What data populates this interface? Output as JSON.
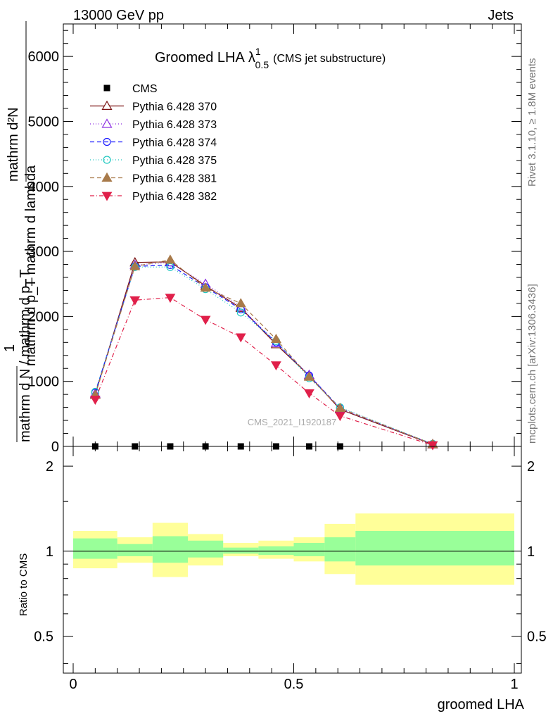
{
  "header": {
    "left": "13000 GeV pp",
    "right": "Jets"
  },
  "side_labels": {
    "rivet": "Rivet 3.1.10, ≥ 1.8M events",
    "mcplots": "mcplots.cern.ch [arXiv:1306.3436]"
  },
  "watermark": "CMS_2021_I1920187",
  "chart_data": [
    {
      "type": "line",
      "title": "Groomed LHA",
      "title_symbol": "λ",
      "title_sup": "1",
      "title_sub": "0.5",
      "title_note": "(CMS jet substructure)",
      "ylabel_numerator": "mathrm d²N",
      "ylabel_numerator_extra": "1",
      "ylabel_denominator": "mathrm d N / mathrm d p_T mathrm d lambda",
      "ylabel_lines": [
        "mathrm d²N",
        "mathrm d p_T mathrm d lambda",
        "1",
        "mathrm d N / mathrm d p_T"
      ],
      "xlim": [
        0,
        1
      ],
      "ylim": [
        0,
        6500
      ],
      "yticks": [
        {
          "value": 1000,
          "label": "1000"
        },
        {
          "value": 2000,
          "label": "2000"
        },
        {
          "value": 3000,
          "label": "3000"
        },
        {
          "value": 4000,
          "label": "4000"
        },
        {
          "value": 5000,
          "label": "5000"
        },
        {
          "value": 6000,
          "label": "6000"
        },
        {
          "value": 0,
          "label": "0"
        }
      ],
      "x": [
        0.05,
        0.14,
        0.22,
        0.3,
        0.38,
        0.46,
        0.535,
        0.605,
        0.815
      ],
      "legend_placement": "top-left",
      "series": [
        {
          "name": "CMS",
          "marker": "square",
          "color": "#000000",
          "dash": "none",
          "values": [
            0,
            0,
            0,
            0,
            0,
            0,
            0,
            0,
            null
          ]
        },
        {
          "name": "Pythia 6.428 370",
          "marker": "triangle-open",
          "color": "#7a1010",
          "dash": "none",
          "values": [
            800,
            2830,
            2840,
            2470,
            2130,
            1570,
            1090,
            570,
            30
          ]
        },
        {
          "name": "Pythia 6.428 373",
          "marker": "triangle-open",
          "color": "#8a2be2",
          "dash": "1,3",
          "values": [
            810,
            2790,
            2830,
            2500,
            2150,
            1590,
            1100,
            580,
            35
          ]
        },
        {
          "name": "Pythia 6.428 374",
          "marker": "circle-open",
          "color": "#1a1aff",
          "dash": "6,4",
          "values": [
            830,
            2770,
            2790,
            2450,
            2110,
            1600,
            1090,
            590,
            35
          ]
        },
        {
          "name": "Pythia 6.428 375",
          "marker": "circle-open",
          "color": "#20c8c0",
          "dash": "1,3",
          "values": [
            840,
            2760,
            2760,
            2420,
            2060,
            1620,
            1050,
            600,
            40
          ]
        },
        {
          "name": "Pythia 6.428 381",
          "marker": "triangle-filled",
          "color": "#a87a4a",
          "dash": "6,4",
          "values": [
            790,
            2770,
            2870,
            2440,
            2200,
            1650,
            1070,
            590,
            35
          ]
        },
        {
          "name": "Pythia 6.428 382",
          "marker": "triangle-down-filled",
          "color": "#e0204a",
          "dash": "6,3,1,3",
          "values": [
            720,
            2250,
            2290,
            1950,
            1680,
            1250,
            820,
            470,
            20
          ]
        }
      ]
    },
    {
      "type": "area",
      "ylabel": "Ratio to CMS",
      "xlabel": "groomed LHA",
      "xlim": [
        0,
        1
      ],
      "ylim": [
        0.37,
        2.35
      ],
      "yscale": "log",
      "yticks": [
        {
          "value": 0.5,
          "label": "0.5"
        },
        {
          "value": 1,
          "label": "1"
        },
        {
          "value": 2,
          "label": "2"
        }
      ],
      "xticks": [
        {
          "value": 0,
          "label": "0"
        },
        {
          "value": 0.5,
          "label": "0.5"
        },
        {
          "value": 1,
          "label": "1"
        }
      ],
      "reference": 1,
      "bands": [
        {
          "x0": 0.0,
          "x1": 0.1,
          "inner": [
            0.94,
            1.11
          ],
          "outer": [
            0.87,
            1.18
          ]
        },
        {
          "x0": 0.1,
          "x1": 0.18,
          "inner": [
            0.96,
            1.06
          ],
          "outer": [
            0.91,
            1.12
          ]
        },
        {
          "x0": 0.18,
          "x1": 0.26,
          "inner": [
            0.91,
            1.13
          ],
          "outer": [
            0.81,
            1.26
          ]
        },
        {
          "x0": 0.26,
          "x1": 0.34,
          "inner": [
            0.95,
            1.09
          ],
          "outer": [
            0.89,
            1.15
          ]
        },
        {
          "x0": 0.34,
          "x1": 0.42,
          "inner": [
            0.98,
            1.03
          ],
          "outer": [
            0.96,
            1.07
          ]
        },
        {
          "x0": 0.42,
          "x1": 0.5,
          "inner": [
            0.97,
            1.04
          ],
          "outer": [
            0.94,
            1.09
          ]
        },
        {
          "x0": 0.5,
          "x1": 0.57,
          "inner": [
            0.96,
            1.07
          ],
          "outer": [
            0.92,
            1.12
          ]
        },
        {
          "x0": 0.57,
          "x1": 0.64,
          "inner": [
            0.92,
            1.12
          ],
          "outer": [
            0.83,
            1.25
          ]
        },
        {
          "x0": 0.64,
          "x1": 1.0,
          "inner": [
            0.89,
            1.18
          ],
          "outer": [
            0.76,
            1.36
          ]
        }
      ]
    }
  ]
}
